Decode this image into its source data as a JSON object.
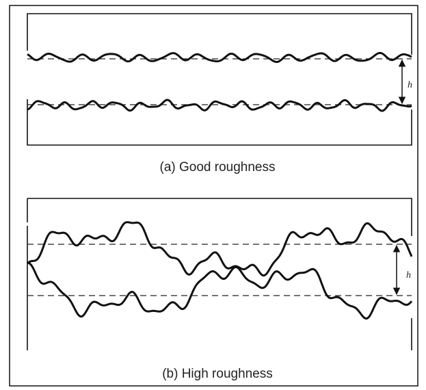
{
  "panels": [
    {
      "gap_label": "h",
      "caption": "(a)  Good roughness"
    },
    {
      "gap_label": "h",
      "caption": "(b)  High roughness"
    }
  ]
}
